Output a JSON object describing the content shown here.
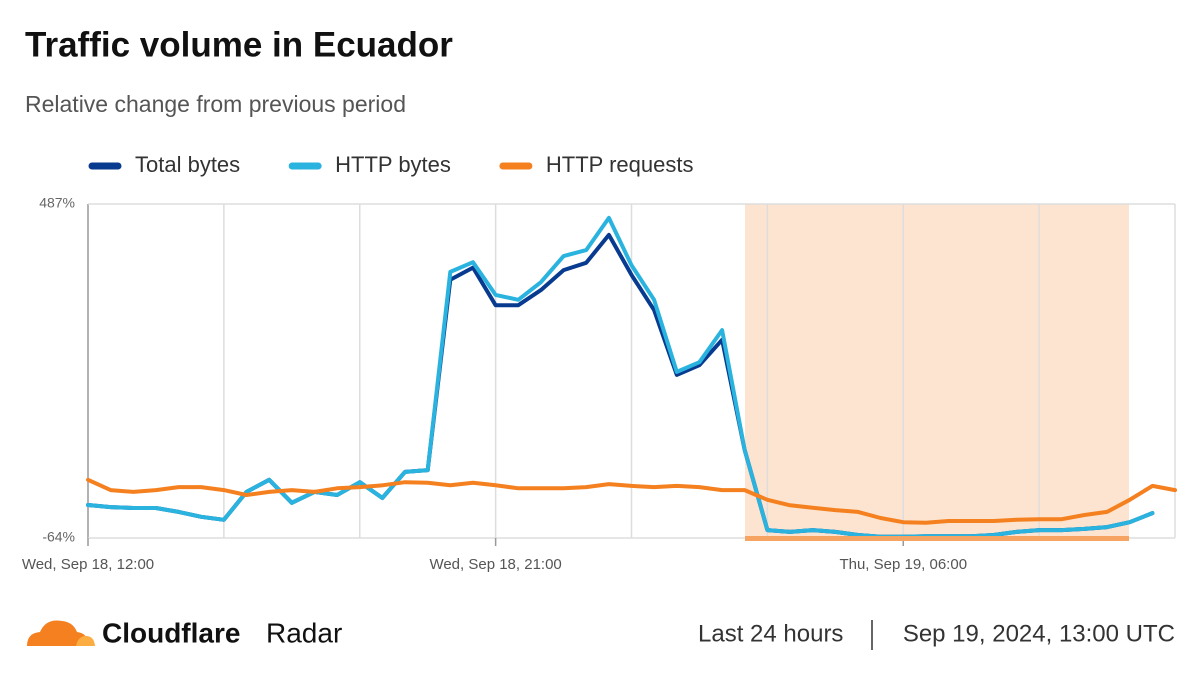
{
  "chart_data": {
    "type": "line",
    "title": "Traffic volume in Ecuador",
    "subtitle": "Relative change from previous period",
    "categories": [
      "Wed, Sep 18, 12:00",
      null,
      null,
      null,
      null,
      null,
      null,
      null,
      null,
      null,
      null,
      null,
      null,
      null,
      null,
      null,
      null,
      null,
      "Wed, Sep 18, 21:00",
      null,
      null,
      null,
      null,
      null,
      null,
      null,
      null,
      null,
      null,
      null,
      null,
      null,
      null,
      null,
      null,
      null,
      "Thu, Sep 19, 06:00",
      null,
      null,
      null,
      null,
      null,
      null,
      null,
      null,
      null,
      null,
      null,
      null
    ],
    "series": [
      {
        "name": "Total bytes",
        "color": "#083b8f",
        "values": [
          -9.5,
          -13,
          -14.5,
          -14.5,
          -21,
          -29,
          -34,
          12,
          32,
          -6,
          12,
          7,
          28,
          2,
          45,
          48,
          362,
          382,
          320,
          320,
          345,
          378,
          390,
          436,
          370,
          312,
          205,
          221,
          263,
          81,
          -51,
          -54,
          -51,
          -54,
          -59,
          -62,
          -62,
          -61,
          -61,
          -61,
          -59,
          -54,
          -51,
          -51,
          -49,
          -46,
          -38,
          -23,
          null
        ]
      },
      {
        "name": "HTTP bytes",
        "color": "#2ab3de",
        "values": [
          -9.5,
          -13,
          -14.5,
          -14.5,
          -21,
          -29,
          -34,
          12,
          32,
          -6,
          12,
          7,
          28,
          2,
          45,
          48,
          375,
          391,
          337,
          329,
          358,
          401,
          411,
          464,
          386,
          329,
          210,
          226,
          279,
          81,
          -51,
          -54,
          -51,
          -54,
          -59,
          -62,
          -62,
          -61,
          -61,
          -61,
          -59,
          -54,
          -51,
          -51,
          -49,
          -46,
          -38,
          -23,
          null
        ]
      },
      {
        "name": "HTTP requests",
        "color": "#f4801f",
        "values": [
          32,
          15,
          12,
          15,
          20,
          20,
          15,
          7,
          12,
          15,
          12,
          18,
          20,
          23,
          28,
          27,
          23,
          27,
          23,
          18,
          18,
          18,
          20,
          25,
          22,
          20,
          22,
          20,
          15,
          15,
          -1,
          -10,
          -14,
          -18,
          -21,
          -31,
          -38,
          -39,
          -36,
          -36,
          -36,
          -34,
          -33,
          -33,
          -26,
          -21,
          -1,
          22,
          15
        ]
      }
    ],
    "ylim": [
      -64,
      487
    ],
    "yticks": [
      {
        "value": -64,
        "label": "-64%"
      },
      {
        "value": 487,
        "label": "487%"
      }
    ],
    "grid": true,
    "legend": "top"
  },
  "footer": {
    "brand": "Cloudflare",
    "product": "Radar",
    "period": "Last 24 hours",
    "timestamp": "Sep 19, 2024, 13:00 UTC"
  }
}
